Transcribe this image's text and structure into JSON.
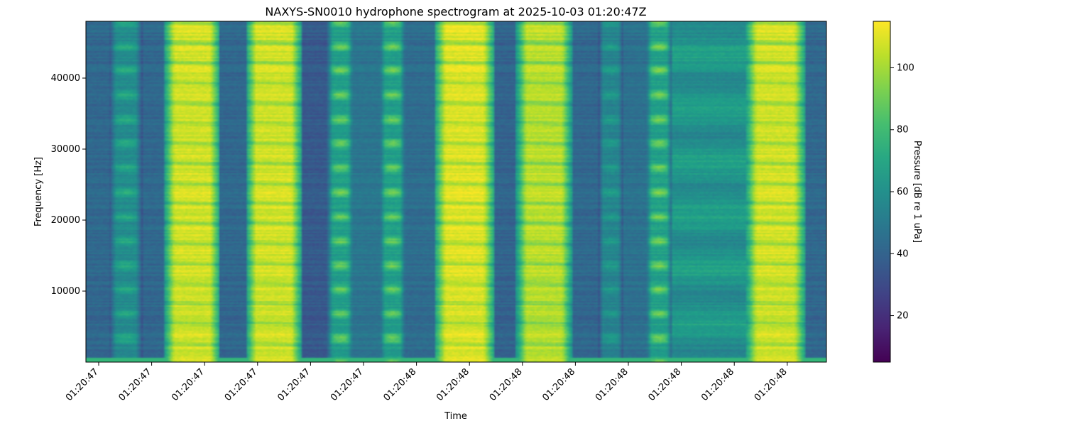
{
  "chart_data": {
    "type": "heatmap",
    "title": "NAXYS-SN0010 hydrophone spectrogram at 2025-10-03 01:20:47Z",
    "xlabel": "Time",
    "ylabel": "Frequency [Hz]",
    "colorbar_label": "Pressure [dB re 1 uPa]",
    "colormap": "viridis",
    "ylim": [
      0,
      48000
    ],
    "clim": [
      5,
      115
    ],
    "x_ticks": [
      "01:20:47",
      "01:20:47",
      "01:20:47",
      "01:20:47",
      "01:20:47",
      "01:20:47",
      "01:20:48",
      "01:20:48",
      "01:20:48",
      "01:20:48",
      "01:20:48",
      "01:20:48",
      "01:20:48",
      "01:20:48"
    ],
    "y_ticks": [
      10000,
      20000,
      30000,
      40000
    ],
    "colorbar_ticks": [
      20,
      40,
      60,
      80,
      100
    ],
    "bands": [
      {
        "start": 0.0,
        "end": 0.03,
        "level": 42,
        "type": "quiet"
      },
      {
        "start": 0.03,
        "end": 0.075,
        "level": 72,
        "type": "modulated"
      },
      {
        "start": 0.075,
        "end": 0.105,
        "level": 42,
        "type": "quiet"
      },
      {
        "start": 0.105,
        "end": 0.18,
        "level": 108,
        "type": "harmonic"
      },
      {
        "start": 0.18,
        "end": 0.215,
        "level": 42,
        "type": "quiet"
      },
      {
        "start": 0.215,
        "end": 0.29,
        "level": 108,
        "type": "harmonic"
      },
      {
        "start": 0.29,
        "end": 0.325,
        "level": 36,
        "type": "quiet"
      },
      {
        "start": 0.325,
        "end": 0.36,
        "level": 90,
        "type": "modulated"
      },
      {
        "start": 0.36,
        "end": 0.395,
        "level": 48,
        "type": "quiet"
      },
      {
        "start": 0.395,
        "end": 0.43,
        "level": 90,
        "type": "modulated"
      },
      {
        "start": 0.43,
        "end": 0.47,
        "level": 44,
        "type": "quiet"
      },
      {
        "start": 0.47,
        "end": 0.55,
        "level": 110,
        "type": "harmonic"
      },
      {
        "start": 0.55,
        "end": 0.58,
        "level": 40,
        "type": "quiet"
      },
      {
        "start": 0.58,
        "end": 0.655,
        "level": 104,
        "type": "harmonic"
      },
      {
        "start": 0.655,
        "end": 0.69,
        "level": 42,
        "type": "quiet"
      },
      {
        "start": 0.69,
        "end": 0.725,
        "level": 65,
        "type": "modulated"
      },
      {
        "start": 0.725,
        "end": 0.755,
        "level": 46,
        "type": "quiet"
      },
      {
        "start": 0.755,
        "end": 0.79,
        "level": 92,
        "type": "modulated"
      },
      {
        "start": 0.79,
        "end": 0.89,
        "level": 62,
        "type": "flat"
      },
      {
        "start": 0.89,
        "end": 0.97,
        "level": 108,
        "type": "harmonic"
      },
      {
        "start": 0.97,
        "end": 1.0,
        "level": 42,
        "type": "quiet"
      }
    ]
  }
}
